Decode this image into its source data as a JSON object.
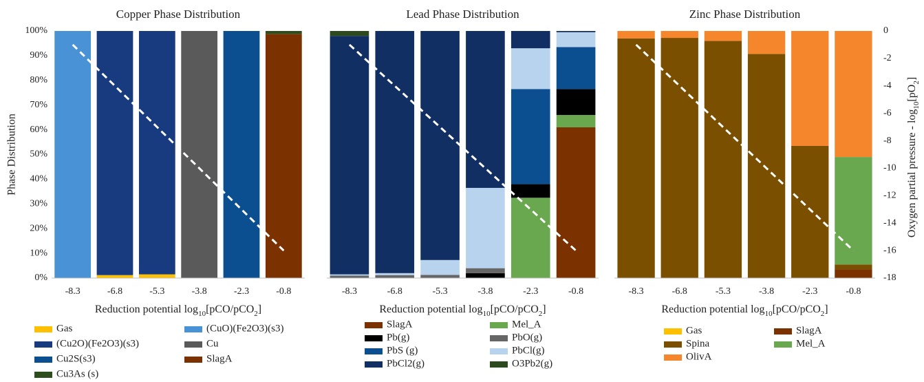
{
  "chart_data": [
    {
      "type": "bar",
      "stacked": true,
      "title": "Copper Phase Distribution",
      "xlabel": "Reduction potential log10[pCO/pCO2]",
      "ylabel": "Phase Distribution",
      "categories": [
        "-8.3",
        "-6.8",
        "-5.3",
        "-3.8",
        "-2.3",
        "-0.8"
      ],
      "ylim": [
        0,
        100
      ],
      "yticks": [
        {
          "value": 0,
          "label": "0%"
        },
        {
          "value": 10,
          "label": "10%"
        },
        {
          "value": 20,
          "label": "20%"
        },
        {
          "value": 30,
          "label": "30%"
        },
        {
          "value": 40,
          "label": "40%"
        },
        {
          "value": 50,
          "label": "50%"
        },
        {
          "value": 60,
          "label": "60%"
        },
        {
          "value": 70,
          "label": "70%"
        },
        {
          "value": 80,
          "label": "80%"
        },
        {
          "value": 90,
          "label": "90%"
        },
        {
          "value": 100,
          "label": "100%"
        }
      ],
      "y2lim": [
        -18,
        0
      ],
      "series": [
        {
          "name": "Gas",
          "color": "#ffc000",
          "values": [
            0,
            1.2,
            1.5,
            0,
            0,
            0
          ]
        },
        {
          "name": "(CuO)(Fe2O3)(s3)",
          "color": "#4a92d6",
          "values": [
            100,
            0,
            0,
            0,
            0,
            0
          ]
        },
        {
          "name": "(Cu2O)(Fe2O3)(s3)",
          "color": "#183b80",
          "values": [
            0,
            98.8,
            98.5,
            0,
            0,
            0
          ]
        },
        {
          "name": "Cu",
          "color": "#5a5a5a",
          "values": [
            0,
            0,
            0,
            100,
            0,
            0
          ]
        },
        {
          "name": "Cu2S(s3)",
          "color": "#0b4f91",
          "values": [
            0,
            0,
            0,
            0,
            100,
            0
          ]
        },
        {
          "name": "SlagA",
          "color": "#7b3200",
          "values": [
            0,
            0,
            0,
            0,
            0,
            98.8
          ]
        },
        {
          "name": "Cu3As (s)",
          "color": "#2e4d1c",
          "values": [
            0,
            0,
            0,
            0,
            0,
            1.2
          ]
        }
      ],
      "line": {
        "axis": "y2",
        "color": "#ffffff",
        "dashed": true,
        "values": [
          -1,
          -4,
          -7,
          -10,
          -13,
          -16
        ]
      }
    },
    {
      "type": "bar",
      "stacked": true,
      "title": "Lead Phase Distribution",
      "xlabel": "Reduction potential log10[pCO/pCO2]",
      "categories": [
        "-8.3",
        "-6.8",
        "-5.3",
        "-3.8",
        "-2.3",
        "-0.8"
      ],
      "ylim": [
        0,
        100
      ],
      "y2lim": [
        -18,
        0
      ],
      "series": [
        {
          "name": "SlagA",
          "color": "#7b3200",
          "values": [
            0,
            0,
            0,
            0,
            0,
            61
          ]
        },
        {
          "name": "Mel_A",
          "color": "#6aa84f",
          "values": [
            0,
            0,
            0,
            0,
            32.5,
            5
          ]
        },
        {
          "name": "Pb(g)",
          "color": "#000000",
          "values": [
            0,
            0,
            0,
            2,
            5.5,
            10.5
          ]
        },
        {
          "name": "PbO(g)",
          "color": "#666666",
          "values": [
            1,
            1.2,
            1.3,
            2,
            0,
            0
          ]
        },
        {
          "name": "PbS (g)",
          "color": "#0b4f91",
          "values": [
            0,
            0,
            0,
            0,
            38.5,
            17
          ]
        },
        {
          "name": "PbCl(g)",
          "color": "#b7d3ee",
          "values": [
            0.5,
            0.8,
            6,
            32.5,
            16.5,
            6
          ]
        },
        {
          "name": "PbCl2(g)",
          "color": "#112f62",
          "values": [
            96.5,
            98,
            92.7,
            63.5,
            7,
            0.5
          ]
        },
        {
          "name": "O3Pb2(g)",
          "color": "#2d4a1e",
          "values": [
            2,
            0,
            0,
            0,
            0,
            0
          ]
        }
      ],
      "line": {
        "axis": "y2",
        "color": "#ffffff",
        "dashed": true,
        "values": [
          -1,
          -4,
          -7,
          -10,
          -13,
          -16
        ]
      }
    },
    {
      "type": "bar",
      "stacked": true,
      "title": "Zinc Phase Distribution",
      "xlabel": "Reduction potential log10[pCO/pCO2]",
      "y2label": "Oxygen partial pressure - log10[pO2]",
      "categories": [
        "-8.3",
        "-6.8",
        "-5.3",
        "-3.8",
        "-2.3",
        "-0.8"
      ],
      "ylim": [
        0,
        100
      ],
      "y2lim": [
        -18,
        0
      ],
      "y2ticks": [
        0,
        -2,
        -4,
        -6,
        -8,
        -10,
        -12,
        -14,
        -16,
        -18
      ],
      "series": [
        {
          "name": "Gas",
          "color": "#ffc000",
          "values": [
            0,
            0,
            0,
            0,
            0,
            0
          ]
        },
        {
          "name": "SlagA",
          "color": "#7b3200",
          "values": [
            0,
            0,
            0,
            0,
            0,
            3.5
          ]
        },
        {
          "name": "Spina",
          "color": "#7a5000",
          "values": [
            97,
            97.2,
            96,
            90.7,
            53.5,
            2
          ]
        },
        {
          "name": "Mel_A",
          "color": "#6aa84f",
          "values": [
            0,
            0,
            0,
            0,
            0,
            43.5
          ]
        },
        {
          "name": "OlivA",
          "color": "#f5862b",
          "values": [
            3,
            2.8,
            4,
            9.3,
            46.5,
            51
          ]
        }
      ],
      "line": {
        "axis": "y2",
        "color": "#ffffff",
        "dashed": true,
        "values": [
          -1,
          -4,
          -7,
          -10,
          -13,
          -16
        ]
      }
    }
  ]
}
